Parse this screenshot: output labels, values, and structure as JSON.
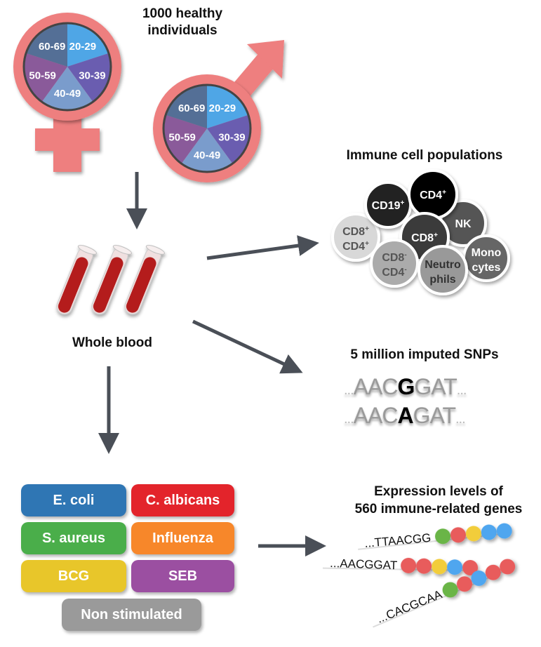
{
  "cohort": {
    "title_line1": "1000 healthy",
    "title_line2": "individuals",
    "age_groups": [
      "20-29",
      "30-39",
      "40-49",
      "50-59",
      "60-69"
    ],
    "age_colors": [
      "#4fa6e6",
      "#6a5db0",
      "#7a9ccc",
      "#8a5a9a",
      "#546f96"
    ],
    "symbol_color": "#ee7f7f"
  },
  "blood": {
    "label": "Whole blood",
    "tube_color": "#b41c1c"
  },
  "immune": {
    "title": "Immune cell populations",
    "cells": [
      {
        "line1": "CD19",
        "sup1": "+",
        "line2": "",
        "sup2": "",
        "color": "#222222",
        "text": "#ffffff"
      },
      {
        "line1": "CD4",
        "sup1": "+",
        "line2": "",
        "sup2": "",
        "color": "#000000",
        "text": "#ffffff"
      },
      {
        "line1": "NK",
        "sup1": "",
        "line2": "",
        "sup2": "",
        "color": "#555555",
        "text": "#ffffff"
      },
      {
        "line1": "CD8",
        "sup1": "+",
        "line2": "",
        "sup2": "",
        "color": "#3a3a3a",
        "text": "#ffffff"
      },
      {
        "line1": "CD8",
        "sup1": "+",
        "line2": "CD4",
        "sup2": "+",
        "color": "#d8d8d8",
        "text": "#555555"
      },
      {
        "line1": "CD8",
        "sup1": "-",
        "line2": "CD4",
        "sup2": "-",
        "color": "#ababab",
        "text": "#555555"
      },
      {
        "line1": "Neutro",
        "sup1": "",
        "line2": "phils",
        "sup2": "",
        "color": "#999999",
        "text": "#333333"
      },
      {
        "line1": "Mono",
        "sup1": "",
        "line2": "cytes",
        "sup2": "",
        "color": "#666666",
        "text": "#ffffff"
      }
    ]
  },
  "snps": {
    "title": "5 million imputed SNPs",
    "row1": {
      "prefix": "...",
      "left": "AAC",
      "variant": "G",
      "right": "GAT",
      "suffix": "..."
    },
    "row2": {
      "prefix": "...",
      "left": "AAC",
      "variant": "A",
      "right": "GAT",
      "suffix": "..."
    }
  },
  "stimuli": [
    {
      "label": "E. coli",
      "color": "#2f76b4"
    },
    {
      "label": "C. albicans",
      "color": "#e3242b"
    },
    {
      "label": "S. aureus",
      "color": "#4aae4a"
    },
    {
      "label": "Influenza",
      "color": "#f7872a"
    },
    {
      "label": "BCG",
      "color": "#e8c62a"
    },
    {
      "label": "SEB",
      "color": "#9b4fa1"
    },
    {
      "label": "Non stimulated",
      "color": "#9a9a9a"
    }
  ],
  "expression": {
    "title_line1": "Expression levels of",
    "title_line2": "560 immune-related genes",
    "seqs": [
      "...TTAACGG",
      "...AACGGAT",
      "...CACGCAA"
    ],
    "bead_colors": {
      "green": "#6ab546",
      "red": "#e85c5c",
      "yellow": "#f2cd3a",
      "blue": "#4fa6ef"
    }
  },
  "arrow_color": "#4a4f57"
}
